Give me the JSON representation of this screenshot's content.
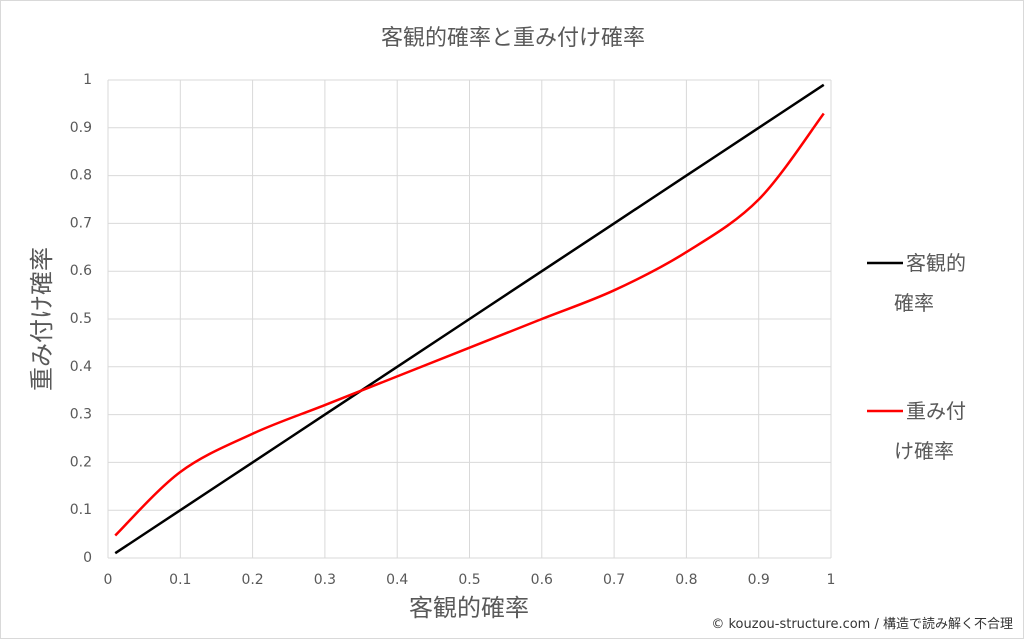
{
  "chart_data": {
    "type": "line",
    "title": "客観的確率と重み付け確率",
    "x_label": "客観的確率",
    "y_label": "重み付け確率",
    "x": [
      0.01,
      0.1,
      0.2,
      0.3,
      0.4,
      0.5,
      0.6,
      0.7,
      0.8,
      0.9,
      0.99
    ],
    "series": [
      {
        "name": "客観的確率",
        "color": "#000000",
        "values": [
          0.01,
          0.1,
          0.2,
          0.3,
          0.4,
          0.5,
          0.6,
          0.7,
          0.8,
          0.9,
          0.99
        ]
      },
      {
        "name": "重み付け確率",
        "color": "#ff0000",
        "values": [
          0.047,
          0.18,
          0.26,
          0.32,
          0.38,
          0.44,
          0.5,
          0.56,
          0.64,
          0.75,
          0.93
        ]
      }
    ],
    "xlim": [
      0,
      1
    ],
    "ylim": [
      0,
      1
    ],
    "xticks": [
      0,
      0.1,
      0.2,
      0.3,
      0.4,
      0.5,
      0.6,
      0.7,
      0.8,
      0.9,
      1
    ],
    "yticks": [
      0,
      0.1,
      0.2,
      0.3,
      0.4,
      0.5,
      0.6,
      0.7,
      0.8,
      0.9,
      1
    ],
    "grid": true,
    "legend": "right"
  },
  "credit": "© kouzou-structure.com / 構造で読み解く不合理"
}
